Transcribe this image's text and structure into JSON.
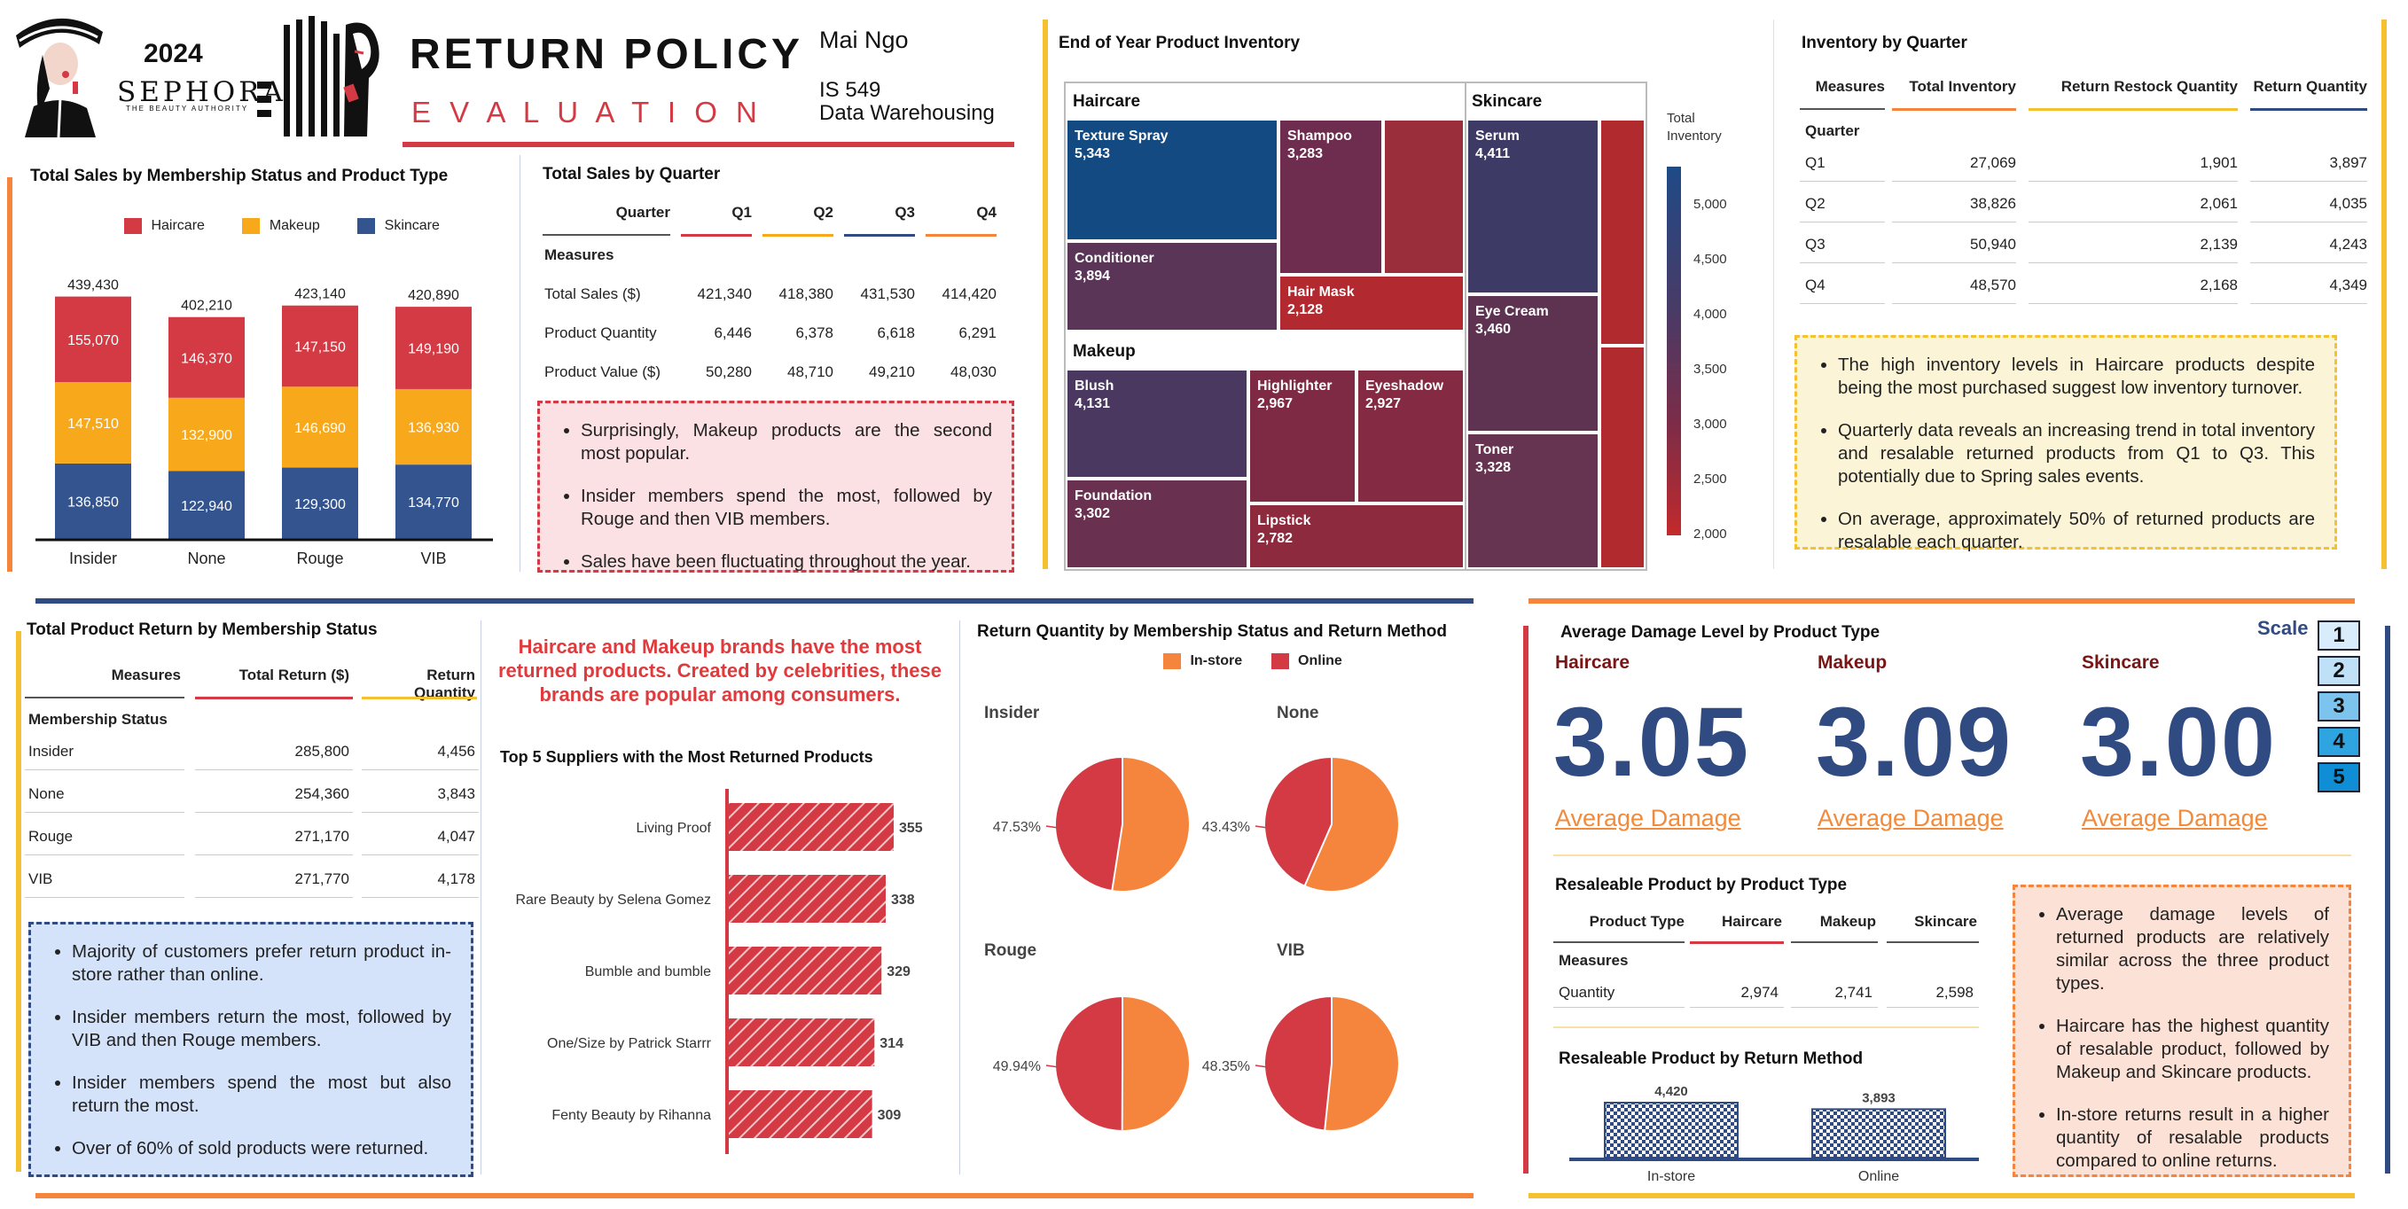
{
  "header": {
    "year": "2024",
    "brand": "SEPHORA",
    "brand_tagline": "THE BEAUTY AUTHORITY",
    "title": "RETURN POLICY",
    "subtitle": "E V A L U A T I O N",
    "author": "Mai Ngo",
    "course_code": "IS 549",
    "course_name": "Data Warehousing"
  },
  "colors": {
    "haircare": "#d43a44",
    "makeup": "#f7a91b",
    "skincare": "#33548f",
    "orange": "#f5843c",
    "yellow": "#f6c131",
    "navy": "#2f4b82",
    "red": "#d43a44"
  },
  "sales_membership": {
    "title": "Total Sales by Membership Status and Product Type",
    "chart_data": {
      "type": "bar",
      "stacked": true,
      "categories": [
        "Insider",
        "None",
        "Rouge",
        "VIB"
      ],
      "series": [
        {
          "name": "Haircare",
          "values": [
            155070,
            146370,
            147150,
            149190
          ]
        },
        {
          "name": "Makeup",
          "values": [
            147510,
            132900,
            146690,
            136930
          ]
        },
        {
          "name": "Skincare",
          "values": [
            136850,
            122940,
            129300,
            134770
          ]
        }
      ],
      "totals": [
        439430,
        402210,
        423140,
        420890
      ],
      "total_labels": [
        "439,430",
        "402,210",
        "423,140",
        "420,890"
      ],
      "value_labels": {
        "Haircare": [
          "155,070",
          "146,370",
          "147,150",
          "149,190"
        ],
        "Makeup": [
          "147,510",
          "132,900",
          "146,690",
          "136,930"
        ],
        "Skincare": [
          "136,850",
          "122,940",
          "129,300",
          "134,770"
        ]
      },
      "legend_position": "top"
    }
  },
  "sales_quarter": {
    "title": "Total Sales by Quarter",
    "col_header": "Quarter",
    "quarters": [
      "Q1",
      "Q2",
      "Q3",
      "Q4"
    ],
    "row_header": "Measures",
    "rows": [
      {
        "label": "Total Sales ($)",
        "values": [
          "421,340",
          "418,380",
          "431,530",
          "414,420"
        ]
      },
      {
        "label": "Product Quantity",
        "values": [
          "6,446",
          "6,378",
          "6,618",
          "6,291"
        ]
      },
      {
        "label": "Product Value ($)",
        "values": [
          "50,280",
          "48,710",
          "49,210",
          "48,030"
        ]
      }
    ],
    "notes": [
      "Surprisingly, Makeup products are the second most popular.",
      "Insider members spend the most, followed by Rouge and then VIB members.",
      "Sales have been fluctuating throughout the year."
    ]
  },
  "inventory_tree": {
    "title": "End of Year Product Inventory",
    "groups": [
      "Haircare",
      "Skincare",
      "Makeup"
    ],
    "items": [
      {
        "name": "Texture Spray",
        "value": "5,343"
      },
      {
        "name": "Shampoo",
        "value": "3,283"
      },
      {
        "name": "Conditioner",
        "value": "3,894"
      },
      {
        "name": "Hair Mask",
        "value": "2,128"
      },
      {
        "name": "Serum",
        "value": "4,411"
      },
      {
        "name": "Eye Cream",
        "value": "3,460"
      },
      {
        "name": "Toner",
        "value": "3,328"
      },
      {
        "name": "Blush",
        "value": "4,131"
      },
      {
        "name": "Highlighter",
        "value": "2,967"
      },
      {
        "name": "Eyeshadow",
        "value": "2,927"
      },
      {
        "name": "Foundation",
        "value": "3,302"
      },
      {
        "name": "Lipstick",
        "value": "2,782"
      }
    ],
    "legend_title": "Total Inventory",
    "legend_ticks": [
      "5,000",
      "4,500",
      "4,000",
      "3,500",
      "3,000",
      "2,500",
      "2,000"
    ]
  },
  "inventory_quarter": {
    "title": "Inventory by Quarter",
    "col_header": "Measures",
    "columns": [
      "Total Inventory",
      "Return Restock Quantity",
      "Return Quantity"
    ],
    "row_header": "Quarter",
    "rows": [
      {
        "label": "Q1",
        "values": [
          "27,069",
          "1,901",
          "3,897"
        ]
      },
      {
        "label": "Q2",
        "values": [
          "38,826",
          "2,061",
          "4,035"
        ]
      },
      {
        "label": "Q3",
        "values": [
          "50,940",
          "2,139",
          "4,243"
        ]
      },
      {
        "label": "Q4",
        "values": [
          "48,570",
          "2,168",
          "4,349"
        ]
      }
    ],
    "notes": [
      "The high inventory levels in Haircare products despite being the most purchased suggest low inventory turnover.",
      "Quarterly data reveals an increasing trend in total inventory and resalable returned products from Q1 to Q3. This potentially due to Spring sales events.",
      "On average, approximately 50% of returned products are resalable each quarter."
    ]
  },
  "return_membership": {
    "title": "Total Product Return by Membership Status",
    "col_header": "Measures",
    "columns": [
      "Total Return ($)",
      "Return Quantity"
    ],
    "row_header": "Membership Status",
    "rows": [
      {
        "label": "Insider",
        "values": [
          "285,800",
          "4,456"
        ]
      },
      {
        "label": "None",
        "values": [
          "254,360",
          "3,843"
        ]
      },
      {
        "label": "Rouge",
        "values": [
          "271,170",
          "4,047"
        ]
      },
      {
        "label": "VIB",
        "values": [
          "271,770",
          "4,178"
        ]
      }
    ],
    "notes": [
      "Majority of customers prefer return product in-store rather than online.",
      "Insider members return the most, followed by VIB and then Rouge members.",
      "Insider members spend the most but also return the most.",
      "Over of 60% of sold products were returned."
    ]
  },
  "suppliers": {
    "headline": "Haircare and Makeup brands have the most returned products. Created by celebrities, these brands are popular among consumers.",
    "title": "Top 5 Suppliers with the Most Returned Products",
    "chart_data": {
      "type": "bar",
      "orientation": "horizontal",
      "categories": [
        "Living Proof",
        "Rare Beauty by Selena Gomez",
        "Bumble and bumble",
        "One/Size by Patrick Starrr",
        "Fenty Beauty by Rihanna"
      ],
      "values": [
        355,
        338,
        329,
        314,
        309
      ]
    }
  },
  "return_method": {
    "title": "Return Quantity by Membership Status and Return Method",
    "chart_data": {
      "type": "pie",
      "legend": [
        "In-store",
        "Online"
      ],
      "pies": [
        {
          "name": "Insider",
          "online_pct": 47.53,
          "label": "47.53%"
        },
        {
          "name": "None",
          "online_pct": 43.43,
          "label": "43.43%"
        },
        {
          "name": "Rouge",
          "online_pct": 49.94,
          "label": "49.94%"
        },
        {
          "name": "VIB",
          "online_pct": 48.35,
          "label": "48.35%"
        }
      ]
    }
  },
  "damage": {
    "title": "Average Damage Level by Product Type",
    "scale_label": "Scale",
    "scale": [
      "1",
      "2",
      "3",
      "4",
      "5"
    ],
    "scale_colors": [
      "#d9ecfb",
      "#bfe0f7",
      "#7cc3ee",
      "#2ea4e0",
      "#0f8ed6"
    ],
    "items": [
      {
        "category": "Haircare",
        "value": "3.05",
        "caption": "Average Damage"
      },
      {
        "category": "Makeup",
        "value": "3.09",
        "caption": "Average Damage"
      },
      {
        "category": "Skincare",
        "value": "3.00",
        "caption": "Average Damage"
      }
    ]
  },
  "resaleable_type": {
    "title": "Resaleable Product by Product Type",
    "col_header": "Product Type",
    "columns": [
      "Haircare",
      "Makeup",
      "Skincare"
    ],
    "row_header": "Measures",
    "rows": [
      {
        "label": "Quantity",
        "values": [
          "2,974",
          "2,741",
          "2,598"
        ]
      }
    ]
  },
  "resaleable_method": {
    "title": "Resaleable Product by Return Method",
    "chart_data": {
      "type": "bar",
      "categories": [
        "In-store",
        "Online"
      ],
      "values": [
        4420,
        3893
      ],
      "labels": [
        "4,420",
        "3,893"
      ]
    }
  },
  "damage_notes": [
    "Average damage levels of returned products are relatively similar across the three product types.",
    "Haircare has the highest quantity of resalable product, followed by Makeup and Skincare products.",
    "In-store returns result in a higher quantity of resalable products compared to online returns."
  ]
}
